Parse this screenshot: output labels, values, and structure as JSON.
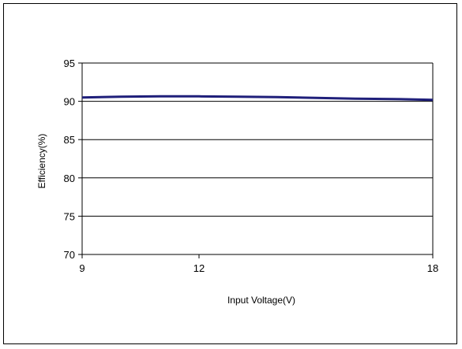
{
  "chart_data": {
    "type": "line",
    "title": "",
    "xlabel": "Input Voltage(V)",
    "ylabel": "Efficiency(%)",
    "xlim": [
      9,
      18
    ],
    "ylim": [
      70,
      95
    ],
    "xticks": [
      9,
      12,
      18
    ],
    "yticks": [
      70,
      75,
      80,
      85,
      90,
      95
    ],
    "grid": true,
    "series": [
      {
        "color": "#1f1f7a",
        "x": [
          9,
          10,
          11,
          12,
          13,
          14,
          15,
          16,
          17,
          18
        ],
        "y": [
          90.5,
          90.6,
          90.65,
          90.65,
          90.6,
          90.55,
          90.45,
          90.35,
          90.3,
          90.2
        ]
      }
    ]
  }
}
